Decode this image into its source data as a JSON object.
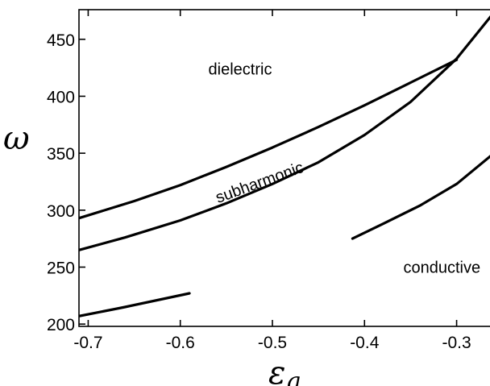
{
  "chart_data": {
    "type": "line",
    "xlabel": "ε",
    "xlabel_sub": "a",
    "ylabel": "ω",
    "xlim": [
      -0.71,
      -0.255
    ],
    "ylim": [
      198,
      476
    ],
    "xticks": [
      -0.7,
      -0.6,
      -0.5,
      -0.4,
      -0.3
    ],
    "xtick_labels": [
      "-0.7",
      "-0.6",
      "-0.5",
      "-0.4",
      "-0.3"
    ],
    "yticks": [
      200,
      250,
      300,
      350,
      400,
      450
    ],
    "ytick_labels": [
      "200",
      "250",
      "300",
      "350",
      "400",
      "450"
    ],
    "grid": false,
    "annotations": [
      {
        "text": "dielectric",
        "x": -0.535,
        "y": 419,
        "rotate": 0
      },
      {
        "text": "subharmonic",
        "x": -0.512,
        "y": 320,
        "rotate": -20
      },
      {
        "text": "conductive",
        "x": -0.316,
        "y": 245,
        "rotate": 0
      }
    ],
    "series": [
      {
        "x": [
          -0.71,
          -0.65,
          -0.6,
          -0.55,
          -0.5,
          -0.45,
          -0.4,
          -0.35,
          -0.3
        ],
        "y": [
          293,
          308,
          322,
          338,
          355,
          373,
          392,
          412,
          432
        ]
      },
      {
        "x": [
          -0.71,
          -0.66,
          -0.6,
          -0.55,
          -0.5,
          -0.45,
          -0.4,
          -0.35,
          -0.3,
          -0.255
        ],
        "y": [
          265,
          276,
          291,
          306,
          323,
          342,
          366,
          395,
          433,
          478
        ]
      },
      {
        "x": [
          -0.71,
          -0.66,
          -0.59
        ],
        "y": [
          207,
          215,
          227
        ]
      },
      {
        "x": [
          -0.413,
          -0.38,
          -0.34,
          -0.3,
          -0.255
        ],
        "y": [
          275,
          288,
          304,
          323,
          353
        ]
      }
    ]
  }
}
